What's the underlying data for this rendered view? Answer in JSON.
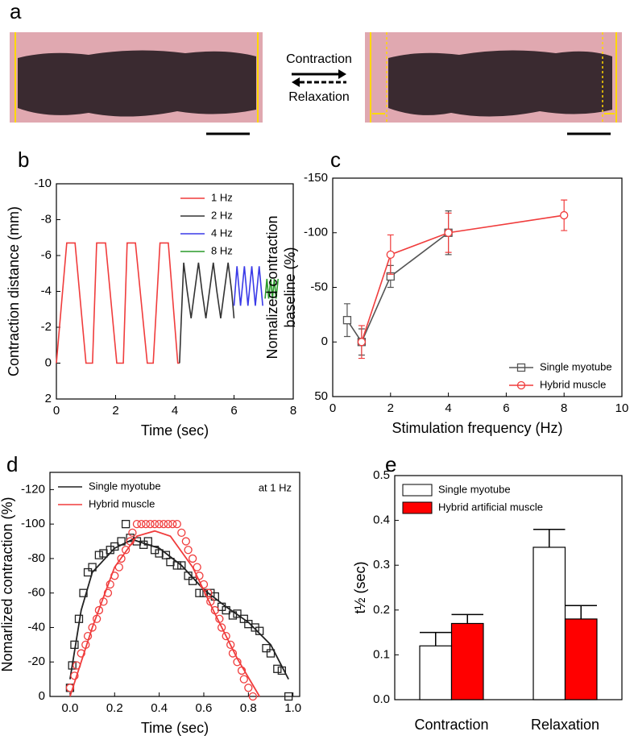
{
  "panel_a": {
    "label": "a",
    "arrow_labels": [
      "Contraction",
      "Relaxation"
    ]
  },
  "chart_data": [
    {
      "type": "line",
      "panel_label": "b",
      "xlabel": "Time (sec)",
      "ylabel": [
        "Contraction distance (mm)"
      ],
      "xlim": [
        0,
        8
      ],
      "xticks": [
        0,
        2,
        4,
        6,
        8
      ],
      "ylim": [
        2,
        -10
      ],
      "yticks": [
        -10,
        -8,
        -6,
        -4,
        -2,
        0,
        2
      ],
      "legend": "upper right",
      "series": [
        {
          "name": "1 Hz",
          "color": "#f03c3c",
          "x": [
            0,
            0.35,
            0.63,
            1.0,
            1.22,
            1.36,
            1.66,
            2.04,
            2.26,
            2.39,
            2.67,
            3.07,
            3.27,
            3.5,
            3.78,
            4.1,
            4.16
          ],
          "values": [
            0,
            -6.7,
            -6.7,
            0,
            0,
            -6.7,
            -6.7,
            0,
            0,
            -6.7,
            -6.7,
            0,
            0,
            -6.7,
            -6.7,
            0,
            0
          ]
        },
        {
          "name": "2 Hz",
          "color": "#333333",
          "x": [
            4.16,
            4.22,
            4.3,
            4.42,
            4.55,
            4.67,
            4.8,
            4.92,
            5.05,
            5.17,
            5.3,
            5.42,
            5.55,
            5.67,
            5.8,
            5.92,
            6.0
          ],
          "values": [
            0,
            -2.5,
            -5.6,
            -4.0,
            -2.5,
            -4.0,
            -5.6,
            -4.0,
            -2.5,
            -4.0,
            -5.6,
            -4.0,
            -2.5,
            -4.0,
            -5.6,
            -4.0,
            -2.5
          ]
        },
        {
          "name": "4 Hz",
          "color": "#3a3ae8",
          "x": [
            6.0,
            6.1,
            6.22,
            6.35,
            6.47,
            6.6,
            6.72,
            6.85,
            6.97
          ],
          "values": [
            -3.2,
            -5.4,
            -3.2,
            -5.4,
            -3.2,
            -5.4,
            -3.2,
            -5.4,
            -3.2
          ]
        },
        {
          "name": "8 Hz",
          "color": "#2a9a2a",
          "x": [
            7.05,
            7.11,
            7.17,
            7.24,
            7.3,
            7.36,
            7.42,
            7.49
          ],
          "values": [
            -3.6,
            -4.7,
            -3.6,
            -4.7,
            -3.6,
            -4.7,
            -3.6,
            -4.7
          ]
        }
      ]
    },
    {
      "type": "line",
      "panel_label": "c",
      "xlabel": "Stimulation frequency (Hz)",
      "ylabel": [
        "Nomalized contraction",
        "baseline (%)"
      ],
      "xlim": [
        0,
        10
      ],
      "xticks": [
        0,
        2,
        4,
        6,
        8,
        10
      ],
      "ylim": [
        50,
        -150
      ],
      "yticks": [
        -150,
        -100,
        -50,
        0,
        50
      ],
      "legend": "lower right",
      "series": [
        {
          "name": "Single myotube",
          "color": "#555555",
          "marker": "square",
          "x": [
            0.5,
            1,
            2,
            4
          ],
          "values": [
            -20,
            0,
            -60,
            -100
          ],
          "errors": [
            15,
            12,
            10,
            20
          ]
        },
        {
          "name": "Hybrid muscle",
          "color": "#f03c3c",
          "marker": "circle",
          "x": [
            1,
            2,
            4,
            8
          ],
          "values": [
            0,
            -80,
            -100,
            -116
          ],
          "errors": [
            15,
            18,
            18,
            14
          ]
        }
      ]
    },
    {
      "type": "scatter",
      "panel_label": "d",
      "xlabel": "Time (sec)",
      "ylabel": [
        "Nomarlized contraction (%)"
      ],
      "annotation": "at 1 Hz",
      "xlim": [
        -0.09,
        1.03
      ],
      "xticks": [
        {
          "value": 0,
          "label": "0.0"
        },
        0.2,
        0.4,
        0.6,
        0.8,
        {
          "value": 1,
          "label": "1.0"
        }
      ],
      "ylim": [
        0,
        -130
      ],
      "yticks": [
        -120,
        -100,
        -80,
        -60,
        -40,
        -20,
        0
      ],
      "legend": "upper left",
      "series": [
        {
          "name": "Single myotube",
          "color": "#222222",
          "marker": "square",
          "x": [
            0.0,
            0.01,
            0.02,
            0.04,
            0.06,
            0.08,
            0.1,
            0.13,
            0.15,
            0.18,
            0.2,
            0.23,
            0.25,
            0.27,
            0.3,
            0.33,
            0.35,
            0.38,
            0.4,
            0.43,
            0.45,
            0.48,
            0.5,
            0.53,
            0.55,
            0.58,
            0.6,
            0.63,
            0.65,
            0.68,
            0.7,
            0.73,
            0.75,
            0.78,
            0.8,
            0.83,
            0.85,
            0.88,
            0.9,
            0.93,
            0.95,
            0.98
          ],
          "values": [
            -5,
            -18,
            -30,
            -45,
            -60,
            -72,
            -75,
            -82,
            -83,
            -85,
            -87,
            -90,
            -100,
            -92,
            -90,
            -88,
            -90,
            -85,
            -83,
            -82,
            -78,
            -76,
            -76,
            -70,
            -67,
            -60,
            -60,
            -60,
            -58,
            -52,
            -50,
            -47,
            -48,
            -45,
            -42,
            -40,
            -38,
            -28,
            -25,
            -16,
            -15,
            0
          ],
          "fit_x": [
            0,
            0.05,
            0.1,
            0.2,
            0.28,
            0.4,
            0.5,
            0.6,
            0.7,
            0.8,
            0.9,
            0.98
          ],
          "fit_values": [
            -10,
            -50,
            -72,
            -86,
            -91,
            -86,
            -76,
            -62,
            -52,
            -43,
            -30,
            -10
          ]
        },
        {
          "name": "Hybrid muscle",
          "color": "#f03c3c",
          "marker": "circle",
          "x": [
            0.0,
            0.02,
            0.03,
            0.05,
            0.07,
            0.08,
            0.1,
            0.12,
            0.13,
            0.15,
            0.17,
            0.18,
            0.2,
            0.22,
            0.23,
            0.25,
            0.27,
            0.28,
            0.3,
            0.32,
            0.34,
            0.36,
            0.38,
            0.4,
            0.42,
            0.44,
            0.46,
            0.48,
            0.5,
            0.52,
            0.53,
            0.55,
            0.57,
            0.58,
            0.6,
            0.62,
            0.63,
            0.65,
            0.67,
            0.68,
            0.7,
            0.72,
            0.73,
            0.75,
            0.77,
            0.78,
            0.8,
            0.82
          ],
          "values": [
            -5,
            -12,
            -18,
            -25,
            -30,
            -35,
            -40,
            -45,
            -50,
            -55,
            -60,
            -65,
            -70,
            -75,
            -80,
            -85,
            -90,
            -95,
            -100,
            -100,
            -100,
            -100,
            -100,
            -100,
            -100,
            -100,
            -100,
            -100,
            -95,
            -90,
            -85,
            -80,
            -75,
            -70,
            -65,
            -60,
            -55,
            -50,
            -45,
            -40,
            -35,
            -30,
            -25,
            -20,
            -15,
            -10,
            -5,
            0
          ],
          "fit_x": [
            0,
            0.1,
            0.2,
            0.3,
            0.38,
            0.45,
            0.55,
            0.65,
            0.75,
            0.85
          ],
          "fit_values": [
            0,
            -40,
            -75,
            -93,
            -96,
            -93,
            -75,
            -48,
            -22,
            0
          ]
        }
      ]
    },
    {
      "type": "bar",
      "panel_label": "e",
      "ylabel": [
        "t½ (sec)"
      ],
      "categories": [
        "Contraction",
        "Relaxation"
      ],
      "ylim": [
        0,
        0.5
      ],
      "yticks": [
        {
          "value": 0,
          "label": "0.0"
        },
        0.1,
        0.2,
        0.3,
        0.4,
        0.5
      ],
      "legend": "upper left",
      "series": [
        {
          "name": "Single myotube",
          "color": "#ffffff",
          "values": [
            0.12,
            0.34
          ],
          "errors": [
            0.03,
            0.04
          ]
        },
        {
          "name": "Hybrid artificial muscle",
          "color": "#ff0000",
          "values": [
            0.17,
            0.18
          ],
          "errors": [
            0.02,
            0.03
          ]
        }
      ]
    }
  ]
}
